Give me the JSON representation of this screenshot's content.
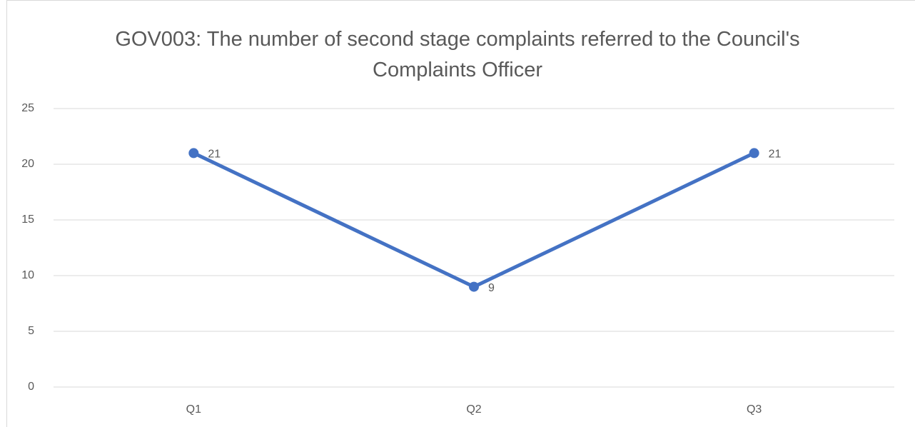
{
  "chart_data": {
    "type": "line",
    "title": "GOV003: The number of second stage complaints referred to the Council's Complaints Officer",
    "categories": [
      "Q1",
      "Q2",
      "Q3"
    ],
    "values": [
      21,
      9,
      21
    ],
    "color": "#4472c4",
    "ylim": [
      0,
      25
    ],
    "yticks": [
      0,
      5,
      10,
      15,
      20,
      25
    ],
    "grid": true
  }
}
